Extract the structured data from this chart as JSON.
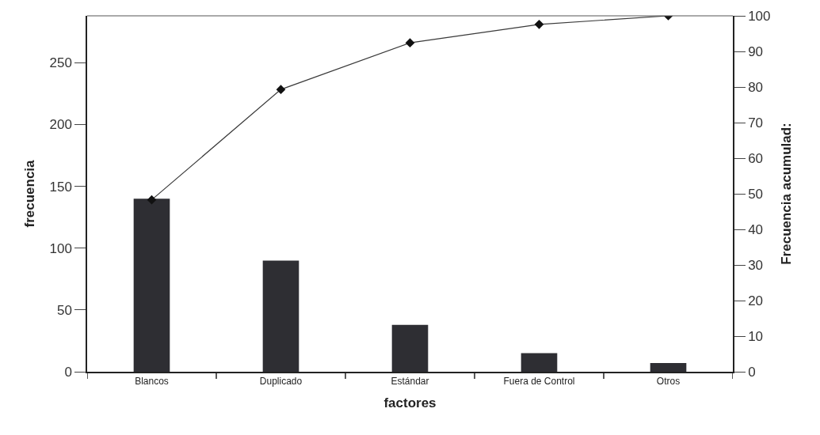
{
  "chart_data": {
    "type": "bar",
    "xlabel": "factores",
    "ylabel": "frecuencia",
    "y2label": "Frecuencia acumulad:",
    "categories": [
      "Blancos",
      "Duplicado",
      "Estándar",
      "Fuera de Control",
      "Otros"
    ],
    "series": [
      {
        "color": "#2e2e33",
        "values": [
          140,
          90,
          38,
          15,
          7
        ]
      },
      {
        "type": "line",
        "axis": "y2",
        "color": "#3a3a3a",
        "marker": "diamond",
        "line_style": "solid",
        "values": [
          48.3,
          79.3,
          92.4,
          97.6,
          100
        ]
      }
    ],
    "ylim": [
      0,
      288
    ],
    "yticks": [
      0,
      50,
      100,
      150,
      200,
      250
    ],
    "y2lim": [
      0,
      100
    ],
    "y2ticks": [
      0,
      10,
      20,
      30,
      40,
      50,
      60,
      70,
      80,
      90,
      100
    ]
  }
}
